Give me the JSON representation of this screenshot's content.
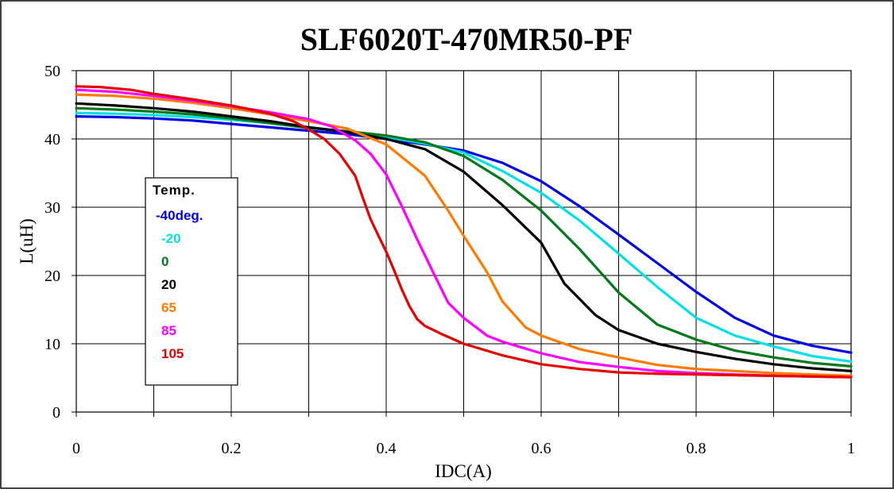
{
  "chart_data": {
    "type": "line",
    "title": "SLF6020T-470MR50-PF",
    "xlabel": "IDC(A)",
    "ylabel": "L(uH)",
    "xlim": [
      0,
      1
    ],
    "ylim": [
      0,
      50
    ],
    "xticks": [
      0,
      0.1,
      0.2,
      0.3,
      0.4,
      0.5,
      0.6,
      0.7,
      0.8,
      0.9,
      1.0
    ],
    "xtick_labels": [
      "0",
      "",
      "0.2",
      "",
      "0.4",
      "",
      "0.6",
      "",
      "0.8",
      "",
      "1"
    ],
    "yticks": [
      0,
      10,
      20,
      30,
      40,
      50
    ],
    "ytick_labels": [
      "0",
      "10",
      "20",
      "30",
      "40",
      "50"
    ],
    "grid": true,
    "legend": {
      "title": "Temp.",
      "position": "left",
      "labels": [
        "-40deg.",
        "-20",
        "0",
        "20",
        "65",
        "85",
        "105"
      ]
    },
    "series": [
      {
        "name": "-40deg.",
        "color": "#0000e6",
        "x": [
          0,
          0.05,
          0.1,
          0.15,
          0.2,
          0.25,
          0.3,
          0.35,
          0.4,
          0.45,
          0.5,
          0.55,
          0.6,
          0.65,
          0.7,
          0.75,
          0.8,
          0.85,
          0.9,
          0.95,
          1.0
        ],
        "y": [
          43.3,
          43.2,
          43.0,
          42.7,
          42.2,
          41.7,
          41.2,
          40.7,
          40.0,
          39.2,
          38.3,
          36.5,
          33.8,
          30.1,
          26.0,
          21.8,
          17.6,
          13.8,
          11.2,
          9.7,
          8.7
        ]
      },
      {
        "name": "-20",
        "color": "#00e0e6",
        "x": [
          0,
          0.05,
          0.1,
          0.15,
          0.2,
          0.25,
          0.3,
          0.35,
          0.4,
          0.45,
          0.5,
          0.55,
          0.6,
          0.65,
          0.7,
          0.75,
          0.8,
          0.85,
          0.9,
          0.95,
          1.0
        ],
        "y": [
          43.8,
          43.7,
          43.5,
          43.2,
          42.8,
          42.3,
          41.7,
          41.1,
          40.3,
          39.3,
          38.0,
          35.3,
          32.1,
          28.0,
          23.2,
          18.3,
          13.8,
          11.2,
          9.6,
          8.2,
          7.4
        ]
      },
      {
        "name": "0",
        "color": "#007a1a",
        "x": [
          0,
          0.05,
          0.1,
          0.15,
          0.2,
          0.25,
          0.3,
          0.35,
          0.4,
          0.45,
          0.5,
          0.55,
          0.6,
          0.65,
          0.7,
          0.75,
          0.8,
          0.85,
          0.9,
          0.95,
          1.0
        ],
        "y": [
          44.5,
          44.3,
          44.0,
          43.6,
          43.0,
          42.3,
          41.6,
          41.1,
          40.5,
          39.5,
          37.5,
          34.0,
          29.5,
          23.8,
          17.5,
          12.8,
          10.6,
          9.0,
          8.0,
          7.2,
          6.7
        ]
      },
      {
        "name": "20",
        "color": "#000000",
        "x": [
          0,
          0.05,
          0.1,
          0.15,
          0.2,
          0.25,
          0.3,
          0.35,
          0.4,
          0.45,
          0.5,
          0.55,
          0.6,
          0.63,
          0.67,
          0.7,
          0.75,
          0.8,
          0.85,
          0.9,
          0.95,
          1.0
        ],
        "y": [
          45.2,
          44.9,
          44.5,
          44.0,
          43.3,
          42.6,
          41.7,
          41.0,
          40.0,
          38.5,
          35.2,
          30.3,
          24.8,
          18.8,
          14.2,
          12.0,
          10.0,
          8.8,
          7.8,
          7.0,
          6.4,
          6.0
        ]
      },
      {
        "name": "65",
        "color": "#ff7a00",
        "x": [
          0,
          0.05,
          0.1,
          0.15,
          0.2,
          0.25,
          0.3,
          0.35,
          0.4,
          0.45,
          0.48,
          0.5,
          0.53,
          0.55,
          0.58,
          0.6,
          0.65,
          0.7,
          0.75,
          0.8,
          0.85,
          0.9,
          0.95,
          1.0
        ],
        "y": [
          46.5,
          46.3,
          45.9,
          45.3,
          44.5,
          43.6,
          42.6,
          41.5,
          39.2,
          34.6,
          29.5,
          25.8,
          20.5,
          16.2,
          12.4,
          11.2,
          9.2,
          8.0,
          6.9,
          6.3,
          6.0,
          5.7,
          5.5,
          5.3
        ]
      },
      {
        "name": "85",
        "color": "#ff00ff",
        "x": [
          0,
          0.05,
          0.1,
          0.15,
          0.2,
          0.25,
          0.3,
          0.33,
          0.36,
          0.38,
          0.4,
          0.42,
          0.44,
          0.46,
          0.48,
          0.5,
          0.53,
          0.55,
          0.6,
          0.65,
          0.7,
          0.75,
          0.8,
          0.85,
          0.9,
          0.95,
          1.0
        ],
        "y": [
          47.2,
          46.9,
          46.3,
          45.6,
          44.8,
          43.9,
          42.9,
          41.8,
          39.8,
          37.8,
          34.8,
          30.2,
          25.3,
          20.6,
          16.0,
          13.8,
          11.2,
          10.3,
          8.6,
          7.3,
          6.6,
          6.0,
          5.7,
          5.5,
          5.3,
          5.2,
          5.1
        ]
      },
      {
        "name": "105",
        "color": "#e60000",
        "x": [
          0,
          0.03,
          0.07,
          0.1,
          0.15,
          0.2,
          0.25,
          0.28,
          0.3,
          0.32,
          0.34,
          0.36,
          0.37,
          0.38,
          0.39,
          0.4,
          0.41,
          0.42,
          0.43,
          0.44,
          0.45,
          0.47,
          0.5,
          0.55,
          0.6,
          0.65,
          0.7,
          0.75,
          0.8,
          0.85,
          0.9,
          0.95,
          1.0
        ],
        "y": [
          47.7,
          47.6,
          47.2,
          46.6,
          45.8,
          44.9,
          43.7,
          42.6,
          41.4,
          40.0,
          37.8,
          34.6,
          31.3,
          28.2,
          25.8,
          23.5,
          20.8,
          18.0,
          15.5,
          13.6,
          12.6,
          11.5,
          10.0,
          8.3,
          7.0,
          6.3,
          5.8,
          5.6,
          5.5,
          5.4,
          5.3,
          5.2,
          5.1
        ]
      }
    ]
  }
}
